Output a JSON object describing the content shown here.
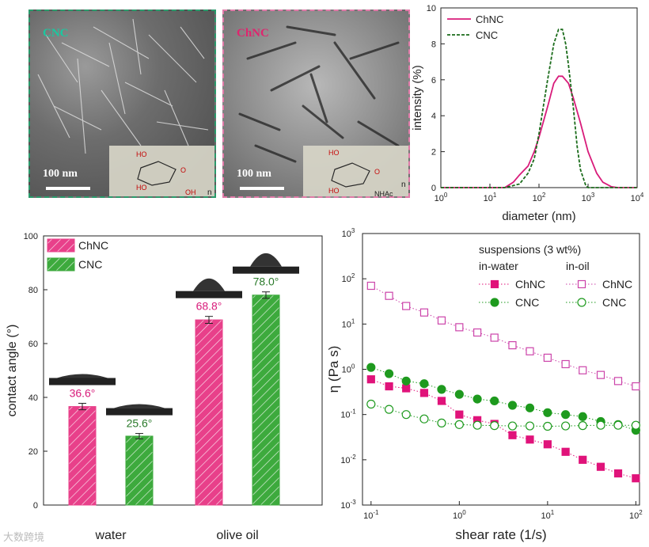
{
  "tem": {
    "cnc": {
      "label": "CNC",
      "scale": "100 nm",
      "label_color": "#19c9a0"
    },
    "chnc": {
      "label": "ChNC",
      "scale": "100 nm",
      "label_color": "#e0246e"
    },
    "cnc_struct": {
      "oh1": "HO",
      "oh2": "HO",
      "oh3": "OH",
      "o": "O",
      "n": "n"
    },
    "chnc_struct": {
      "oh1": "HO",
      "oh2": "HO",
      "nhac": "NHAc",
      "o": "O",
      "n": "n"
    }
  },
  "chart_data": [
    {
      "type": "line",
      "title": "",
      "xlabel": "diameter (nm)",
      "ylabel": "intensity (%)",
      "xscale": "log",
      "xlim": [
        1,
        10000
      ],
      "ylim": [
        0,
        10
      ],
      "xticks": [
        "10^0",
        "10^1",
        "10^2",
        "10^3",
        "10^4"
      ],
      "yticks": [
        "0",
        "2",
        "4",
        "6",
        "8",
        "10"
      ],
      "series": [
        {
          "name": "ChNC",
          "color": "#d81b7a",
          "dash": "solid",
          "x": [
            20,
            30,
            40,
            60,
            80,
            100,
            150,
            200,
            250,
            300,
            400,
            500,
            700,
            1000,
            1500,
            2000,
            3000,
            4000,
            10000
          ],
          "y": [
            0,
            0.3,
            0.7,
            1.2,
            2.0,
            2.8,
            4.5,
            5.8,
            6.2,
            6.2,
            5.8,
            5.0,
            3.6,
            2.0,
            0.8,
            0.3,
            0.05,
            0,
            0
          ]
        },
        {
          "name": "CNC",
          "color": "#1a6b1a",
          "dash": "dashed",
          "x": [
            20,
            40,
            60,
            80,
            100,
            150,
            200,
            250,
            300,
            350,
            400,
            500,
            600,
            700,
            900,
            1000,
            10000
          ],
          "y": [
            0,
            0.2,
            0.8,
            1.6,
            3.0,
            6.0,
            8.0,
            8.8,
            8.8,
            8.0,
            6.8,
            4.5,
            2.3,
            1.0,
            0.1,
            0,
            0
          ]
        }
      ],
      "legend_position": "top-left"
    },
    {
      "type": "bar",
      "xlabel": "",
      "ylabel": "contact angle (°)",
      "ylim": [
        0,
        100
      ],
      "yticks": [
        "0",
        "20",
        "40",
        "60",
        "80",
        "100"
      ],
      "categories": [
        "water",
        "olive oil"
      ],
      "series": [
        {
          "name": "ChNC",
          "color": "#e8408a",
          "values": [
            36.6,
            68.8
          ],
          "errors": [
            1.2,
            1.3
          ],
          "labels": [
            "36.6°",
            "68.8°"
          ]
        },
        {
          "name": "CNC",
          "color": "#3daa3d",
          "values": [
            25.6,
            78.0
          ],
          "errors": [
            1.0,
            1.2
          ],
          "labels": [
            "25.6°",
            "78.0°"
          ]
        }
      ],
      "legend_position": "top-left"
    },
    {
      "type": "scatter",
      "xlabel": "shear rate (1/s)",
      "ylabel": "η (Pa s)",
      "xscale": "log",
      "yscale": "log",
      "xlim": [
        0.08,
        110
      ],
      "ylim": [
        0.001,
        1000
      ],
      "xticks": [
        "10^-1",
        "10^0",
        "10^1",
        "10^2"
      ],
      "yticks": [
        "10^-3",
        "10^-2",
        "10^-1",
        "10^0",
        "10^1",
        "10^2",
        "10^3"
      ],
      "legend_title": "suspensions (3 wt%)",
      "legend_groups": [
        "in-water",
        "in-oil"
      ],
      "x": [
        0.1,
        0.16,
        0.25,
        0.4,
        0.63,
        1.0,
        1.6,
        2.5,
        4.0,
        6.3,
        10,
        16,
        25,
        40,
        63,
        100
      ],
      "series": [
        {
          "name": "ChNC",
          "group": "in-water",
          "color": "#e0137a",
          "marker": "square-filled",
          "y": [
            0.6,
            0.42,
            0.38,
            0.3,
            0.2,
            0.1,
            0.075,
            0.062,
            0.035,
            0.028,
            0.022,
            0.015,
            0.01,
            0.007,
            0.005,
            0.0039
          ]
        },
        {
          "name": "CNC",
          "group": "in-water",
          "color": "#1e9a1e",
          "marker": "circle-filled",
          "y": [
            1.1,
            0.8,
            0.55,
            0.48,
            0.36,
            0.28,
            0.22,
            0.2,
            0.16,
            0.14,
            0.11,
            0.1,
            0.09,
            0.07,
            0.06,
            0.045
          ]
        },
        {
          "name": "ChNC",
          "group": "in-oil",
          "color": "#cc44aa",
          "marker": "square-open",
          "y": [
            70,
            42,
            25,
            18,
            12,
            8.5,
            6.5,
            5,
            3.4,
            2.5,
            1.8,
            1.3,
            0.95,
            0.75,
            0.55,
            0.42
          ]
        },
        {
          "name": "CNC",
          "group": "in-oil",
          "color": "#1e9a1e",
          "marker": "circle-open",
          "y": [
            0.17,
            0.13,
            0.1,
            0.08,
            0.065,
            0.06,
            0.058,
            0.057,
            0.056,
            0.056,
            0.055,
            0.056,
            0.057,
            0.058,
            0.058,
            0.058
          ]
        }
      ]
    }
  ],
  "watermark": "大数跨境"
}
